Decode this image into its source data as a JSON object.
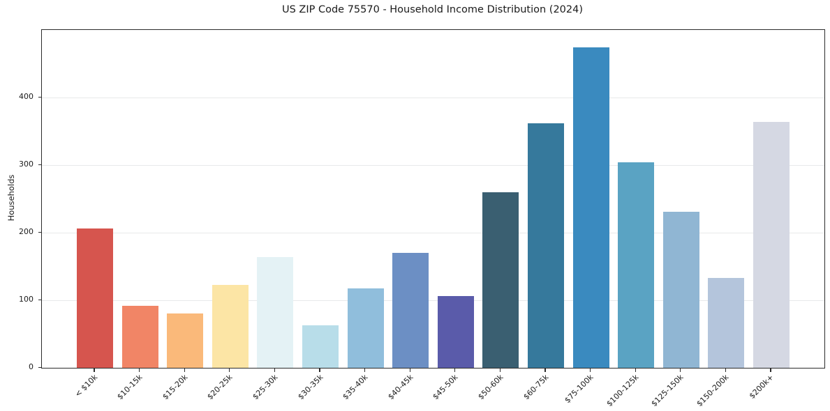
{
  "chart_data": {
    "type": "bar",
    "title": "US ZIP Code 75570 - Household Income Distribution (2024)",
    "xlabel": "",
    "ylabel": "Households",
    "categories": [
      "< $10k",
      "$10-15k",
      "$15-20k",
      "$20-25k",
      "$25-30k",
      "$30-35k",
      "$35-40k",
      "$40-45k",
      "$45-50k",
      "$50-60k",
      "$60-75k",
      "$75-100k",
      "$100-125k",
      "$125-150k",
      "$150-200k",
      "$200k+"
    ],
    "values": [
      206,
      92,
      80,
      123,
      164,
      63,
      118,
      170,
      106,
      260,
      362,
      474,
      304,
      231,
      133,
      364
    ],
    "bar_colors": [
      "#d6554e",
      "#f18566",
      "#fab97a",
      "#fce5a5",
      "#e4f2f5",
      "#b8dde9",
      "#90bedc",
      "#6c8fc4",
      "#5a5baa",
      "#3a5f71",
      "#36799c",
      "#3a8abf",
      "#5aa3c3",
      "#90b6d3",
      "#b4c5dc",
      "#d5d8e3"
    ],
    "yticks": [
      0,
      100,
      200,
      300,
      400
    ],
    "ylim": [
      0,
      500
    ],
    "grid": "horizontal-light",
    "legend": "none",
    "colors": {
      "grid": "#e8e9ea",
      "spine": "#2b2b2b",
      "text": "#1a1a1a",
      "background": "#ffffff"
    }
  }
}
